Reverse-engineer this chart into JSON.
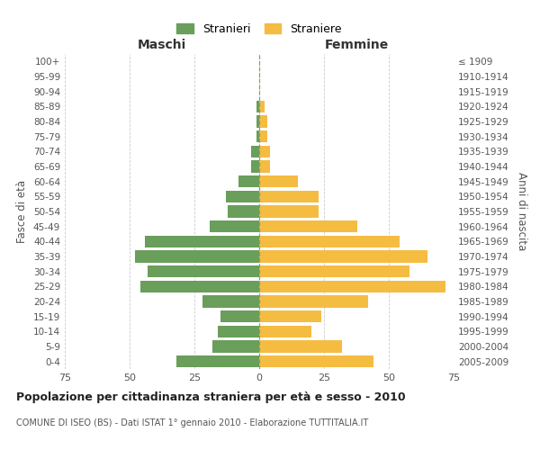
{
  "age_groups": [
    "0-4",
    "5-9",
    "10-14",
    "15-19",
    "20-24",
    "25-29",
    "30-34",
    "35-39",
    "40-44",
    "45-49",
    "50-54",
    "55-59",
    "60-64",
    "65-69",
    "70-74",
    "75-79",
    "80-84",
    "85-89",
    "90-94",
    "95-99",
    "100+"
  ],
  "birth_years": [
    "2005-2009",
    "2000-2004",
    "1995-1999",
    "1990-1994",
    "1985-1989",
    "1980-1984",
    "1975-1979",
    "1970-1974",
    "1965-1969",
    "1960-1964",
    "1955-1959",
    "1950-1954",
    "1945-1949",
    "1940-1944",
    "1935-1939",
    "1930-1934",
    "1925-1929",
    "1920-1924",
    "1915-1919",
    "1910-1914",
    "≤ 1909"
  ],
  "males": [
    32,
    18,
    16,
    15,
    22,
    46,
    43,
    48,
    44,
    19,
    12,
    13,
    8,
    3,
    3,
    1,
    1,
    1,
    0,
    0,
    0
  ],
  "females": [
    44,
    32,
    20,
    24,
    42,
    72,
    58,
    65,
    54,
    38,
    23,
    23,
    15,
    4,
    4,
    3,
    3,
    2,
    0,
    0,
    0
  ],
  "male_color": "#6a9e5b",
  "female_color": "#f5bc42",
  "title_main": "Popolazione per cittadinanza straniera per età e sesso - 2010",
  "title_sub": "COMUNE DI ISEO (BS) - Dati ISTAT 1° gennaio 2010 - Elaborazione TUTTITALIA.IT",
  "xlabel_left": "Maschi",
  "xlabel_right": "Femmine",
  "ylabel_left": "Fasce di età",
  "ylabel_right": "Anni di nascita",
  "legend_male": "Stranieri",
  "legend_female": "Straniere",
  "xlim": 75,
  "background_color": "#ffffff",
  "grid_color": "#cccccc",
  "bar_height": 0.8
}
